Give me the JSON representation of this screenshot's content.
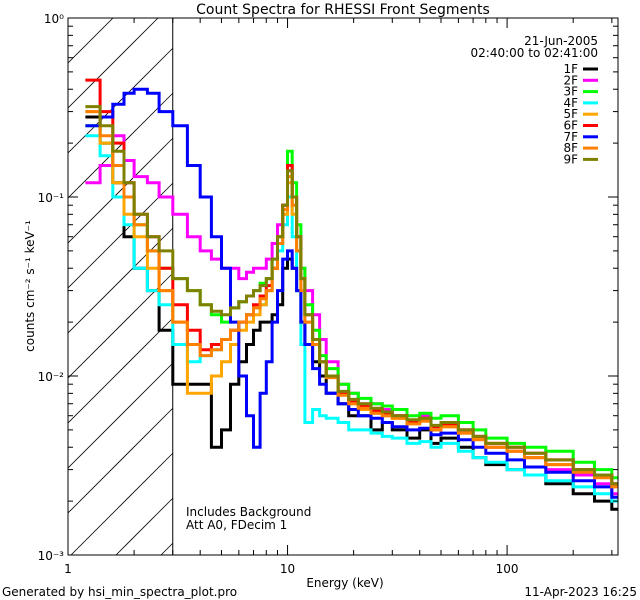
{
  "chart_data": {
    "type": "line",
    "title": "Count Spectra for RHESSI Front Segments",
    "xlabel": "Energy (keV)",
    "ylabel": "counts cm⁻² s⁻¹ keV⁻¹",
    "xscale": "log",
    "yscale": "log",
    "xlim": [
      1,
      320
    ],
    "ylim": [
      0.001,
      1
    ],
    "x_ticks": [
      {
        "value": 1,
        "label": "1"
      },
      {
        "value": 10,
        "label": "10"
      },
      {
        "value": 100,
        "label": "100"
      }
    ],
    "y_ticks": [
      {
        "value": 1,
        "label": "10⁰"
      },
      {
        "value": 0.1,
        "label": "10⁻¹"
      },
      {
        "value": 0.01,
        "label": "10⁻²"
      },
      {
        "value": 0.001,
        "label": "10⁻³"
      }
    ],
    "date": "21-Jun-2005",
    "time_range": "02:40:00 to 02:41:00",
    "annotations": [
      "Includes Background",
      "Att A0, FDecim 1"
    ],
    "hatched_region_xmax": 3,
    "series": [
      {
        "name": "1F",
        "color": "#000000",
        "x": [
          1.2,
          1.4,
          1.6,
          1.8,
          2.0,
          2.3,
          2.6,
          3.0,
          3.5,
          4.0,
          4.5,
          5.0,
          5.5,
          6.0,
          6.5,
          7.0,
          7.5,
          8.0,
          8.5,
          9.0,
          9.5,
          10.0,
          10.5,
          11.0,
          11.5,
          12,
          13,
          14,
          15,
          17,
          19,
          21,
          24,
          27,
          30,
          35,
          40,
          45,
          50,
          60,
          70,
          80,
          100,
          120,
          150,
          200,
          250,
          300
        ],
        "values": [
          0.28,
          0.2,
          0.12,
          0.06,
          0.04,
          0.03,
          0.018,
          0.009,
          0.009,
          0.009,
          0.004,
          0.005,
          0.009,
          0.012,
          0.015,
          0.018,
          0.02,
          0.02,
          0.022,
          0.025,
          0.04,
          0.045,
          0.04,
          0.03,
          0.02,
          0.015,
          0.012,
          0.01,
          0.008,
          0.007,
          0.006,
          0.006,
          0.005,
          0.0055,
          0.005,
          0.0045,
          0.005,
          0.0042,
          0.0045,
          0.004,
          0.0035,
          0.0032,
          0.003,
          0.0028,
          0.0025,
          0.0022,
          0.002,
          0.0018
        ]
      },
      {
        "name": "2F",
        "color": "#ff00ff",
        "x": [
          1.2,
          1.4,
          1.6,
          1.8,
          2.0,
          2.3,
          2.6,
          3.0,
          3.5,
          4.0,
          4.5,
          5.0,
          5.5,
          6.0,
          6.5,
          7.0,
          7.5,
          8.0,
          8.5,
          9.0,
          9.5,
          10.0,
          10.5,
          11.0,
          11.5,
          12,
          13,
          14,
          15,
          17,
          19,
          21,
          24,
          27,
          30,
          35,
          40,
          45,
          50,
          60,
          70,
          80,
          100,
          120,
          150,
          200,
          250,
          300
        ],
        "values": [
          0.12,
          0.15,
          0.22,
          0.16,
          0.13,
          0.12,
          0.1,
          0.08,
          0.06,
          0.05,
          0.045,
          0.04,
          0.04,
          0.035,
          0.038,
          0.04,
          0.04,
          0.045,
          0.055,
          0.07,
          0.09,
          0.14,
          0.1,
          0.06,
          0.04,
          0.03,
          0.022,
          0.016,
          0.012,
          0.009,
          0.008,
          0.007,
          0.007,
          0.0065,
          0.006,
          0.0055,
          0.006,
          0.005,
          0.0055,
          0.005,
          0.0045,
          0.004,
          0.0038,
          0.0035,
          0.003,
          0.0028,
          0.0025,
          0.0022
        ]
      },
      {
        "name": "3F",
        "color": "#00ff00",
        "x": [
          1.2,
          1.4,
          1.6,
          1.8,
          2.0,
          2.3,
          2.6,
          3.0,
          3.5,
          4.0,
          4.5,
          5.0,
          5.5,
          6.0,
          6.5,
          7.0,
          7.5,
          8.0,
          8.5,
          9.0,
          9.5,
          10.0,
          10.5,
          11.0,
          11.5,
          12,
          13,
          14,
          15,
          17,
          19,
          21,
          24,
          27,
          30,
          35,
          40,
          45,
          50,
          60,
          70,
          80,
          100,
          120,
          150,
          200,
          250,
          300
        ],
        "values": [
          0.25,
          0.2,
          0.15,
          0.1,
          0.07,
          0.05,
          0.04,
          0.035,
          0.03,
          0.025,
          0.022,
          0.02,
          0.024,
          0.026,
          0.028,
          0.03,
          0.033,
          0.035,
          0.045,
          0.06,
          0.08,
          0.18,
          0.12,
          0.07,
          0.04,
          0.025,
          0.018,
          0.013,
          0.011,
          0.009,
          0.008,
          0.0075,
          0.007,
          0.0068,
          0.0065,
          0.006,
          0.0062,
          0.0058,
          0.006,
          0.0055,
          0.005,
          0.0045,
          0.0042,
          0.004,
          0.0038,
          0.0033,
          0.003,
          0.0027
        ]
      },
      {
        "name": "4F",
        "color": "#00ffff",
        "x": [
          1.2,
          1.4,
          1.6,
          1.8,
          2.0,
          2.3,
          2.6,
          3.0,
          3.5,
          4.0,
          4.5,
          5.0,
          5.5,
          6.0,
          6.5,
          7.0,
          7.5,
          8.0,
          8.5,
          9.0,
          9.5,
          10.0,
          10.5,
          11.0,
          11.5,
          12,
          13,
          14,
          15,
          17,
          19,
          21,
          24,
          27,
          30,
          35,
          40,
          45,
          50,
          60,
          70,
          80,
          100,
          120,
          150,
          200,
          250,
          300
        ],
        "values": [
          0.22,
          0.17,
          0.1,
          0.07,
          0.04,
          0.03,
          0.025,
          0.015,
          0.012,
          0.013,
          0.014,
          0.016,
          0.018,
          0.02,
          0.022,
          0.024,
          0.025,
          0.03,
          0.04,
          0.05,
          0.07,
          0.1,
          0.06,
          0.03,
          0.015,
          0.0055,
          0.0065,
          0.006,
          0.0058,
          0.0055,
          0.005,
          0.005,
          0.0048,
          0.0046,
          0.0045,
          0.0042,
          0.0043,
          0.004,
          0.0042,
          0.0038,
          0.0035,
          0.0033,
          0.003,
          0.0028,
          0.0026,
          0.0024,
          0.0022,
          0.002
        ]
      },
      {
        "name": "5F",
        "color": "#ffa500",
        "x": [
          1.2,
          1.4,
          1.6,
          1.8,
          2.0,
          2.3,
          2.6,
          3.0,
          3.5,
          4.0,
          4.5,
          5.0,
          5.5,
          6.0,
          6.5,
          7.0,
          7.5,
          8.0,
          8.5,
          9.0,
          9.5,
          10.0,
          10.5,
          11.0,
          11.5,
          12,
          13,
          14,
          15,
          17,
          19,
          21,
          24,
          27,
          30,
          35,
          40,
          45,
          50,
          60,
          70,
          80,
          100,
          120,
          150,
          200,
          250,
          300
        ],
        "values": [
          0.3,
          0.2,
          0.12,
          0.08,
          0.06,
          0.04,
          0.03,
          0.02,
          0.008,
          0.008,
          0.01,
          0.012,
          0.015,
          0.018,
          0.02,
          0.022,
          0.025,
          0.03,
          0.04,
          0.055,
          0.08,
          0.12,
          0.08,
          0.05,
          0.03,
          0.02,
          0.015,
          0.012,
          0.01,
          0.008,
          0.007,
          0.0065,
          0.0062,
          0.006,
          0.0058,
          0.0055,
          0.0056,
          0.005,
          0.0052,
          0.0048,
          0.0045,
          0.004,
          0.0038,
          0.0035,
          0.0032,
          0.003,
          0.0028,
          0.0025
        ]
      },
      {
        "name": "6F",
        "color": "#ff0000",
        "x": [
          1.2,
          1.4,
          1.6,
          1.8,
          2.0,
          2.3,
          2.6,
          3.0,
          3.5,
          4.0,
          4.5,
          5.0,
          5.5,
          6.0,
          6.5,
          7.0,
          7.5,
          8.0,
          8.5,
          9.0,
          9.5,
          10.0,
          10.5,
          11.0,
          11.5,
          12,
          13,
          14,
          15,
          17,
          19,
          21,
          24,
          27,
          30,
          35,
          40,
          45,
          50,
          60,
          70,
          80,
          100,
          120,
          150,
          200,
          250,
          300
        ],
        "values": [
          0.45,
          0.3,
          0.2,
          0.12,
          0.08,
          0.06,
          0.04,
          0.025,
          0.018,
          0.014,
          0.015,
          0.016,
          0.018,
          0.02,
          0.022,
          0.025,
          0.028,
          0.032,
          0.04,
          0.06,
          0.09,
          0.15,
          0.1,
          0.06,
          0.035,
          0.022,
          0.016,
          0.012,
          0.01,
          0.008,
          0.0072,
          0.0068,
          0.0064,
          0.0062,
          0.006,
          0.0056,
          0.0058,
          0.0052,
          0.0054,
          0.005,
          0.0046,
          0.0042,
          0.004,
          0.0037,
          0.0034,
          0.003,
          0.0028,
          0.0025
        ]
      },
      {
        "name": "7F",
        "color": "#0000ff",
        "x": [
          1.2,
          1.4,
          1.6,
          1.8,
          2.0,
          2.3,
          2.6,
          3.0,
          3.5,
          4.0,
          4.5,
          5.0,
          5.5,
          6.0,
          6.5,
          7.0,
          7.5,
          8.0,
          8.5,
          9.0,
          9.5,
          10.0,
          10.5,
          11.0,
          11.5,
          12,
          13,
          14,
          15,
          17,
          19,
          21,
          24,
          27,
          30,
          35,
          40,
          45,
          50,
          60,
          70,
          80,
          100,
          120,
          150,
          200,
          250,
          300
        ],
        "values": [
          0.25,
          0.28,
          0.33,
          0.38,
          0.4,
          0.38,
          0.3,
          0.25,
          0.15,
          0.1,
          0.06,
          0.04,
          0.02,
          0.01,
          0.006,
          0.004,
          0.008,
          0.012,
          0.02,
          0.03,
          0.045,
          0.05,
          0.04,
          0.03,
          0.02,
          0.015,
          0.011,
          0.009,
          0.008,
          0.007,
          0.0065,
          0.006,
          0.0058,
          0.0055,
          0.0052,
          0.005,
          0.0051,
          0.0047,
          0.0048,
          0.0044,
          0.004,
          0.0037,
          0.0034,
          0.0031,
          0.0029,
          0.0026,
          0.0024,
          0.0021
        ]
      },
      {
        "name": "8F",
        "color": "#ff8000",
        "x": [
          1.2,
          1.4,
          1.6,
          1.8,
          2.0,
          2.3,
          2.6,
          3.0,
          3.5,
          4.0,
          4.5,
          5.0,
          5.5,
          6.0,
          6.5,
          7.0,
          7.5,
          8.0,
          8.5,
          9.0,
          9.5,
          10.0,
          10.5,
          11.0,
          11.5,
          12,
          13,
          14,
          15,
          17,
          19,
          21,
          24,
          27,
          30,
          35,
          40,
          45,
          50,
          60,
          70,
          80,
          100,
          120,
          150,
          200,
          250,
          300
        ],
        "values": [
          0.3,
          0.22,
          0.15,
          0.1,
          0.07,
          0.05,
          0.03,
          0.02,
          0.015,
          0.013,
          0.014,
          0.016,
          0.018,
          0.02,
          0.022,
          0.024,
          0.027,
          0.03,
          0.04,
          0.055,
          0.085,
          0.13,
          0.09,
          0.05,
          0.03,
          0.02,
          0.015,
          0.012,
          0.0098,
          0.0078,
          0.007,
          0.0066,
          0.0062,
          0.006,
          0.0058,
          0.0054,
          0.0056,
          0.005,
          0.0052,
          0.0048,
          0.0044,
          0.004,
          0.0038,
          0.0035,
          0.0032,
          0.0029,
          0.0027,
          0.0024
        ]
      },
      {
        "name": "9F",
        "color": "#808000",
        "x": [
          1.2,
          1.4,
          1.6,
          1.8,
          2.0,
          2.3,
          2.6,
          3.0,
          3.5,
          4.0,
          4.5,
          5.0,
          5.5,
          6.0,
          6.5,
          7.0,
          7.5,
          8.0,
          8.5,
          9.0,
          9.5,
          10.0,
          10.5,
          11.0,
          11.5,
          12,
          13,
          14,
          15,
          17,
          19,
          21,
          24,
          27,
          30,
          35,
          40,
          45,
          50,
          60,
          70,
          80,
          100,
          120,
          150,
          200,
          250,
          300
        ],
        "values": [
          0.32,
          0.25,
          0.18,
          0.12,
          0.08,
          0.06,
          0.05,
          0.035,
          0.03,
          0.025,
          0.023,
          0.022,
          0.024,
          0.026,
          0.028,
          0.03,
          0.032,
          0.035,
          0.045,
          0.06,
          0.09,
          0.14,
          0.1,
          0.06,
          0.035,
          0.022,
          0.016,
          0.012,
          0.01,
          0.0082,
          0.0074,
          0.007,
          0.0066,
          0.0063,
          0.006,
          0.0057,
          0.0058,
          0.0053,
          0.0055,
          0.005,
          0.0046,
          0.0042,
          0.004,
          0.0037,
          0.0034,
          0.003,
          0.0028,
          0.0025
        ]
      }
    ]
  },
  "footer": {
    "left": "Generated by hsi_min_spectra_plot.pro",
    "right": "11-Apr-2023 16:25"
  }
}
